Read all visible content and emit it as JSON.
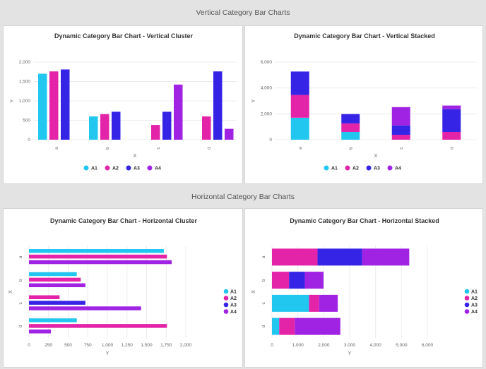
{
  "sections": {
    "vertical_header": "Vertical Category Bar Charts",
    "horizontal_header": "Horizontal Category Bar Charts"
  },
  "colors": {
    "A1": "#22c7ef",
    "A2": "#e324a8",
    "A3": "#3524e6",
    "A4": "#a023e3"
  },
  "chart_data": [
    {
      "type": "bar",
      "orientation": "vertical",
      "stacked": false,
      "title": "Dynamic Category Bar Chart - Vertical Cluster",
      "xlabel": "X",
      "ylabel": "Y",
      "categories": [
        "a",
        "b",
        "c",
        "d"
      ],
      "series": [
        {
          "name": "A1",
          "values": [
            1700,
            600,
            0,
            0
          ]
        },
        {
          "name": "A2",
          "values": [
            1760,
            660,
            380,
            600
          ]
        },
        {
          "name": "A3",
          "values": [
            1810,
            720,
            720,
            1760
          ]
        },
        {
          "name": "A4",
          "values": [
            0,
            0,
            1420,
            280
          ]
        }
      ],
      "ylim": [
        0,
        2000
      ],
      "yticks": [
        "0",
        "500",
        "1,000",
        "1,500",
        "2,000"
      ],
      "legend": "bottom"
    },
    {
      "type": "bar",
      "orientation": "vertical",
      "stacked": true,
      "title": "Dynamic Category Bar Chart - Vertical Stacked",
      "xlabel": "X",
      "ylabel": "Y",
      "categories": [
        "a",
        "b",
        "c",
        "d"
      ],
      "series": [
        {
          "name": "A1",
          "values": [
            1700,
            600,
            0,
            0
          ]
        },
        {
          "name": "A2",
          "values": [
            1760,
            660,
            380,
            600
          ]
        },
        {
          "name": "A3",
          "values": [
            1810,
            720,
            720,
            1760
          ]
        },
        {
          "name": "A4",
          "values": [
            0,
            0,
            1420,
            280
          ]
        }
      ],
      "ylim": [
        0,
        6000
      ],
      "yticks": [
        "0",
        "2,000",
        "4,000",
        "6,000"
      ],
      "legend": "bottom"
    },
    {
      "type": "bar",
      "orientation": "horizontal",
      "stacked": false,
      "title": "Dynamic Category Bar Chart - Horizontal Cluster",
      "xlabel": "X",
      "ylabel": "Y",
      "categories": [
        "a",
        "b",
        "c",
        "d"
      ],
      "series": [
        {
          "name": "A1",
          "values": [
            1720,
            610,
            0,
            610
          ]
        },
        {
          "name": "A2",
          "values": [
            1760,
            660,
            390,
            1760
          ]
        },
        {
          "name": "A3",
          "values": [
            0,
            0,
            720,
            0
          ]
        },
        {
          "name": "A4",
          "values": [
            1820,
            720,
            1430,
            280
          ]
        }
      ],
      "xlim": [
        0,
        2000
      ],
      "xticks": [
        "0",
        "250",
        "500",
        "750",
        "1,000",
        "1,250",
        "1,500",
        "1,750",
        "2,000"
      ],
      "legend": "right"
    },
    {
      "type": "bar",
      "orientation": "horizontal",
      "stacked": true,
      "title": "Dynamic Category Bar Chart - Horizontal Stacked",
      "xlabel": "X",
      "ylabel": "Y",
      "categories": [
        "a",
        "b",
        "c",
        "d"
      ],
      "series": [
        {
          "name": "A1",
          "values": [
            0,
            0,
            1430,
            280
          ]
        },
        {
          "name": "A2",
          "values": [
            1760,
            660,
            390,
            600
          ]
        },
        {
          "name": "A3",
          "values": [
            1720,
            610,
            0,
            0
          ]
        },
        {
          "name": "A4",
          "values": [
            1820,
            720,
            720,
            1760
          ]
        }
      ],
      "xlim": [
        0,
        6000
      ],
      "xticks": [
        "0",
        "1,000",
        "2,000",
        "3,000",
        "4,000",
        "5,000",
        "6,000"
      ],
      "legend": "right"
    }
  ]
}
